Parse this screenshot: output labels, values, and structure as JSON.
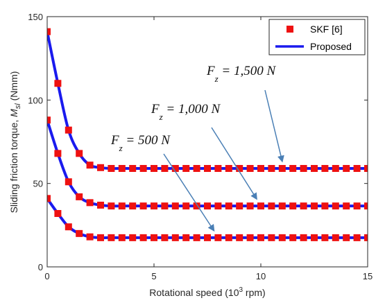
{
  "chart_data": {
    "type": "line",
    "xlabel": "Rotational speed (10",
    "xlabel_exp": "3",
    "xlabel_tail": " rpm)",
    "ylabel": "Sliding friction torque, ",
    "ylabel_sym": "M",
    "ylabel_sub": "sl",
    "ylabel_tail": " (Nmm)",
    "xlim": [
      0,
      15
    ],
    "ylim": [
      0,
      150
    ],
    "xticks": [
      0,
      5,
      10,
      15
    ],
    "xtick_labels": [
      "0",
      "5",
      "10",
      "15"
    ],
    "yticks": [
      0,
      50,
      100,
      150
    ],
    "ytick_labels": [
      "0",
      "50",
      "100",
      "150"
    ],
    "grid": false,
    "legend": {
      "position": "top-right",
      "entries": [
        "SKF [6]",
        "Proposed"
      ]
    },
    "colors": {
      "marker": "#ee1111",
      "line": "#1a1aee",
      "arrow": "#4a7fb5"
    },
    "x_points": [
      0,
      0.5,
      1,
      1.5,
      2,
      2.5,
      3,
      3.5,
      4,
      4.5,
      5,
      5.5,
      6,
      6.5,
      7,
      7.5,
      8,
      8.5,
      9,
      9.5,
      10,
      10.5,
      11,
      11.5,
      12,
      12.5,
      13,
      13.5,
      14,
      14.5,
      15
    ],
    "series": [
      {
        "name": "SKF [6]",
        "kind": "markers",
        "groups": [
          {
            "values": [
              141,
              110,
              82,
              68,
              61,
              59.5,
              59,
              59,
              59,
              59,
              59,
              59,
              59,
              59,
              59,
              59,
              59,
              59,
              59,
              59,
              59,
              59,
              59,
              59,
              59,
              59,
              59,
              59,
              59,
              59,
              59
            ]
          },
          {
            "values": [
              88,
              68,
              51,
              42,
              38.5,
              37,
              36.5,
              36.5,
              36.5,
              36.5,
              36.5,
              36.5,
              36.5,
              36.5,
              36.5,
              36.5,
              36.5,
              36.5,
              36.5,
              36.5,
              36.5,
              36.5,
              36.5,
              36.5,
              36.5,
              36.5,
              36.5,
              36.5,
              36.5,
              36.5,
              36.5
            ]
          },
          {
            "values": [
              41,
              32,
              24,
              20,
              18,
              17.5,
              17.5,
              17.5,
              17.5,
              17.5,
              17.5,
              17.5,
              17.5,
              17.5,
              17.5,
              17.5,
              17.5,
              17.5,
              17.5,
              17.5,
              17.5,
              17.5,
              17.5,
              17.5,
              17.5,
              17.5,
              17.5,
              17.5,
              17.5,
              17.5,
              17.5
            ]
          }
        ]
      },
      {
        "name": "Proposed",
        "kind": "line",
        "groups": [
          {
            "values": [
              141,
              110,
              82,
              68,
              61,
              59.5,
              59,
              59,
              59,
              59,
              59,
              59,
              59,
              59,
              59,
              59,
              59,
              59,
              59,
              59,
              59,
              59,
              59,
              59,
              59,
              59,
              59,
              59,
              59,
              59,
              59
            ]
          },
          {
            "values": [
              88,
              68,
              51,
              42,
              38.5,
              37,
              36.5,
              36.5,
              36.5,
              36.5,
              36.5,
              36.5,
              36.5,
              36.5,
              36.5,
              36.5,
              36.5,
              36.5,
              36.5,
              36.5,
              36.5,
              36.5,
              36.5,
              36.5,
              36.5,
              36.5,
              36.5,
              36.5,
              36.5,
              36.5,
              36.5
            ]
          },
          {
            "values": [
              41,
              32,
              24,
              20,
              18,
              17.5,
              17.5,
              17.5,
              17.5,
              17.5,
              17.5,
              17.5,
              17.5,
              17.5,
              17.5,
              17.5,
              17.5,
              17.5,
              17.5,
              17.5,
              17.5,
              17.5,
              17.5,
              17.5,
              17.5,
              17.5,
              17.5,
              17.5,
              17.5,
              17.5,
              17.5
            ]
          }
        ]
      }
    ],
    "annotations": [
      {
        "sym": "F",
        "sub": "z",
        "text": " = 1,500 N",
        "target": [
          11,
          60
        ]
      },
      {
        "sym": "F",
        "sub": "z",
        "text": " = 1,000 N",
        "target": [
          9.8,
          37.5
        ]
      },
      {
        "sym": "F",
        "sub": "z",
        "text": " = 500 N",
        "target": [
          7.8,
          18.5
        ]
      }
    ]
  }
}
